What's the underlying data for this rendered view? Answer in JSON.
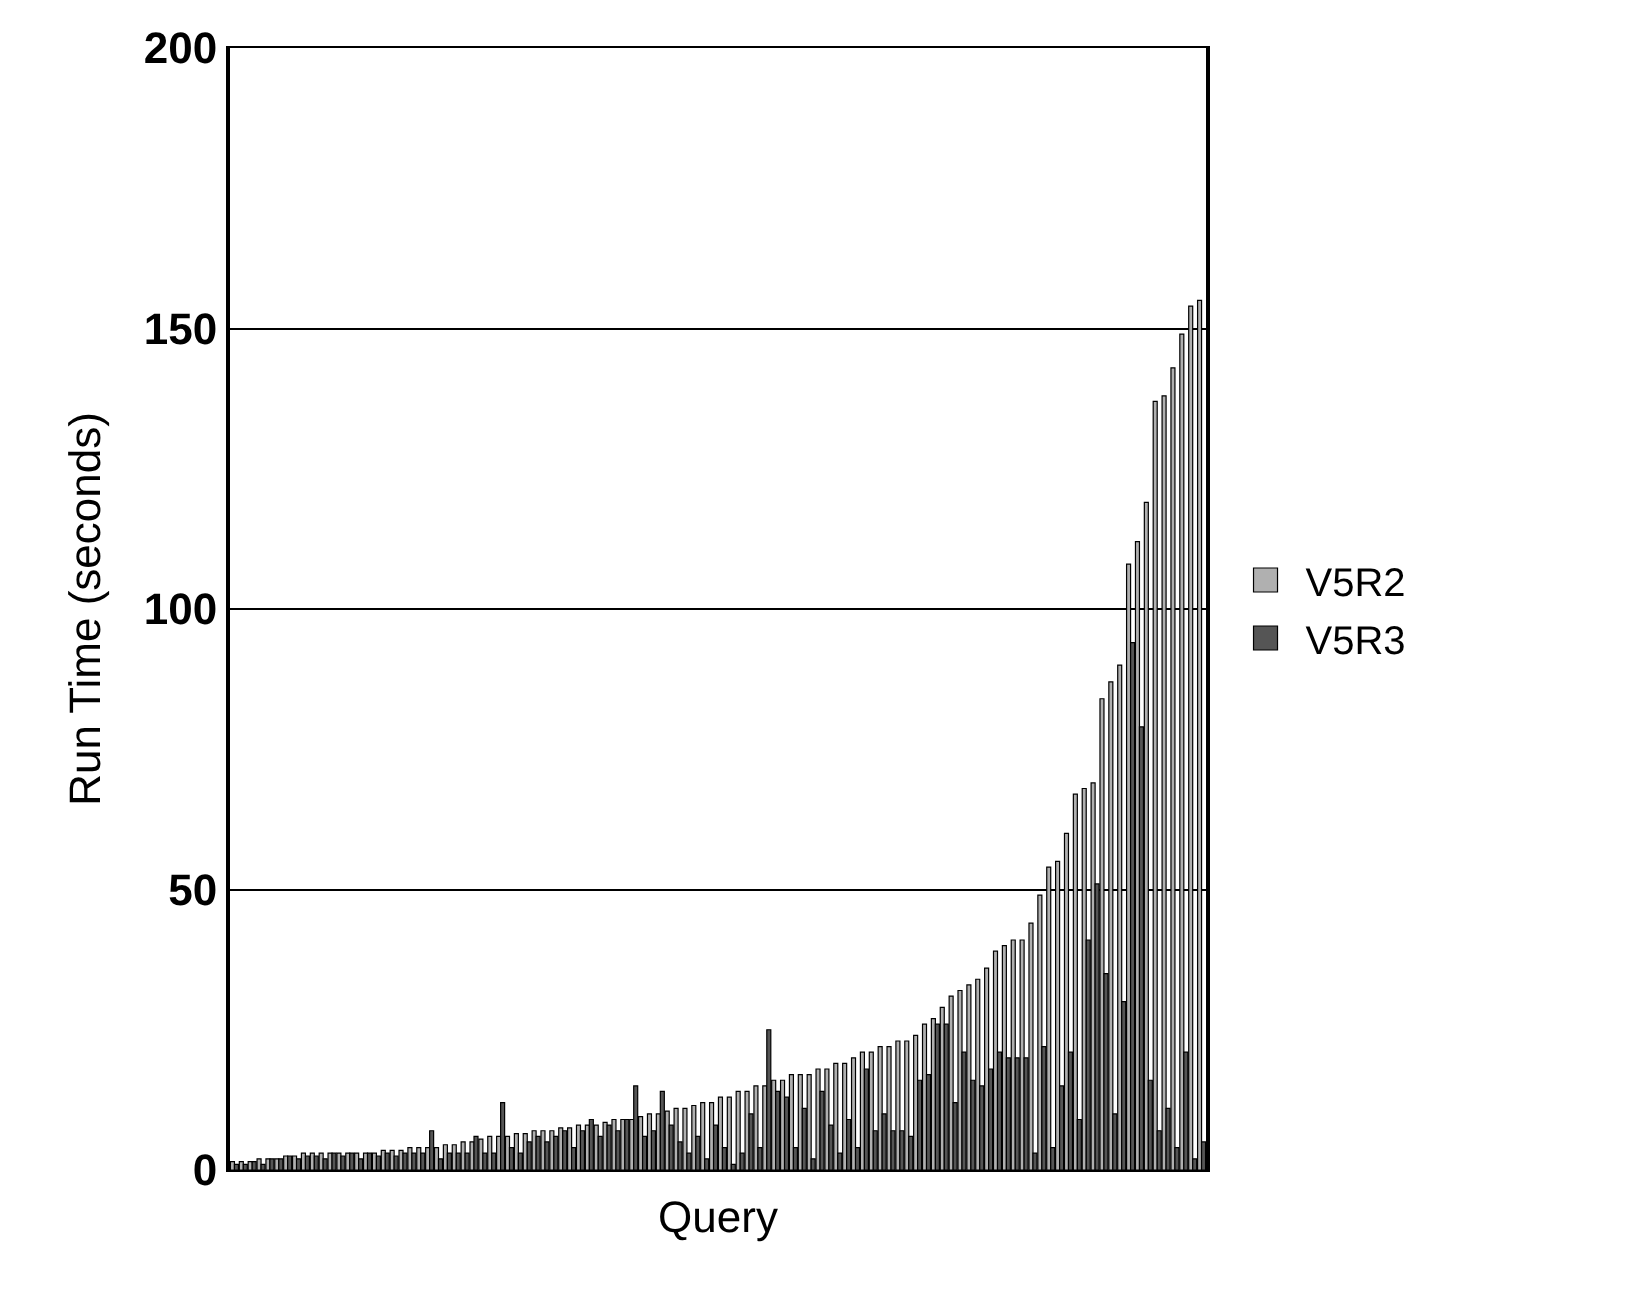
{
  "chart_data": {
    "type": "bar",
    "xlabel": "Query",
    "ylabel": "Run Time (seconds)",
    "categories": [
      null,
      null,
      null,
      null,
      null,
      null,
      null,
      null,
      null,
      null,
      null,
      null,
      null,
      null,
      null,
      null,
      null,
      null,
      null,
      null,
      null,
      null,
      null,
      null,
      null,
      null,
      null,
      null,
      null,
      null,
      null,
      null,
      null,
      null,
      null,
      null,
      null,
      null,
      null,
      null,
      null,
      null,
      null,
      null,
      null,
      null,
      null,
      null,
      null,
      null,
      null,
      null,
      null,
      null,
      null,
      null,
      null,
      null,
      null,
      null,
      null,
      null,
      null,
      null,
      null,
      null,
      null,
      null,
      null,
      null,
      null,
      null,
      null,
      null,
      null,
      null,
      null,
      null,
      null,
      null,
      null,
      null,
      null,
      null,
      null,
      null,
      null,
      null,
      null,
      null,
      null,
      null,
      null,
      null,
      null,
      null,
      null,
      null,
      null,
      null,
      null,
      null,
      null,
      null,
      null,
      null,
      null,
      null,
      null,
      null
    ],
    "series": [
      {
        "name": "V5R2",
        "color": "#b0b0b0",
        "values": [
          1.5,
          1.5,
          1.5,
          2,
          2,
          2,
          2.5,
          2.5,
          3,
          3,
          3,
          3,
          3,
          3,
          3,
          3,
          3,
          3.5,
          3.5,
          3.5,
          4,
          4,
          4,
          4,
          4.5,
          4.5,
          5,
          5,
          5.5,
          6,
          6,
          6,
          6.5,
          6.5,
          7,
          7,
          7,
          7.5,
          7.5,
          8,
          8,
          8,
          8.5,
          9,
          9,
          9,
          9.5,
          10,
          10,
          10.5,
          11,
          11,
          11.5,
          12,
          12,
          13,
          13,
          14,
          14,
          15,
          15,
          16,
          16,
          17,
          17,
          17,
          18,
          18,
          19,
          19,
          20,
          21,
          21,
          22,
          22,
          23,
          23,
          24,
          26,
          27,
          29,
          31,
          32,
          33,
          34,
          36,
          39,
          40,
          41,
          41,
          44,
          49,
          54,
          55,
          60,
          67,
          68,
          69,
          84,
          87,
          90,
          108,
          112,
          119,
          137,
          138,
          143,
          149,
          154,
          155
        ]
      },
      {
        "name": "V5R3",
        "color": "#555555",
        "values": [
          1,
          1,
          1.5,
          1,
          2,
          2,
          2.5,
          2,
          2.5,
          2.5,
          2,
          3,
          2.5,
          3,
          2,
          3,
          2.5,
          3,
          2.5,
          3,
          3,
          3,
          7,
          2,
          3,
          3,
          3,
          6,
          3,
          3,
          12,
          4,
          3,
          5,
          6,
          5,
          6,
          7,
          4,
          7,
          9,
          6,
          8,
          7,
          9,
          15,
          6,
          7,
          14,
          8,
          5,
          3,
          6,
          2,
          8,
          4,
          1,
          3,
          10,
          4,
          25,
          14,
          13,
          4,
          11,
          2,
          14,
          8,
          3,
          9,
          4,
          18,
          7,
          10,
          7,
          7,
          6,
          16,
          17,
          26,
          26,
          12,
          21,
          16,
          15,
          18,
          21,
          20,
          20,
          20,
          3,
          22,
          4,
          15,
          21,
          9,
          41,
          51,
          35,
          10,
          30,
          94,
          79,
          16,
          7,
          11,
          4,
          21,
          2,
          5
        ]
      }
    ],
    "ylim": [
      0,
      200
    ],
    "yticks": [
      0,
      50,
      100,
      150,
      200
    ],
    "grid": "y",
    "legend": "right",
    "tick_labels": "y"
  }
}
